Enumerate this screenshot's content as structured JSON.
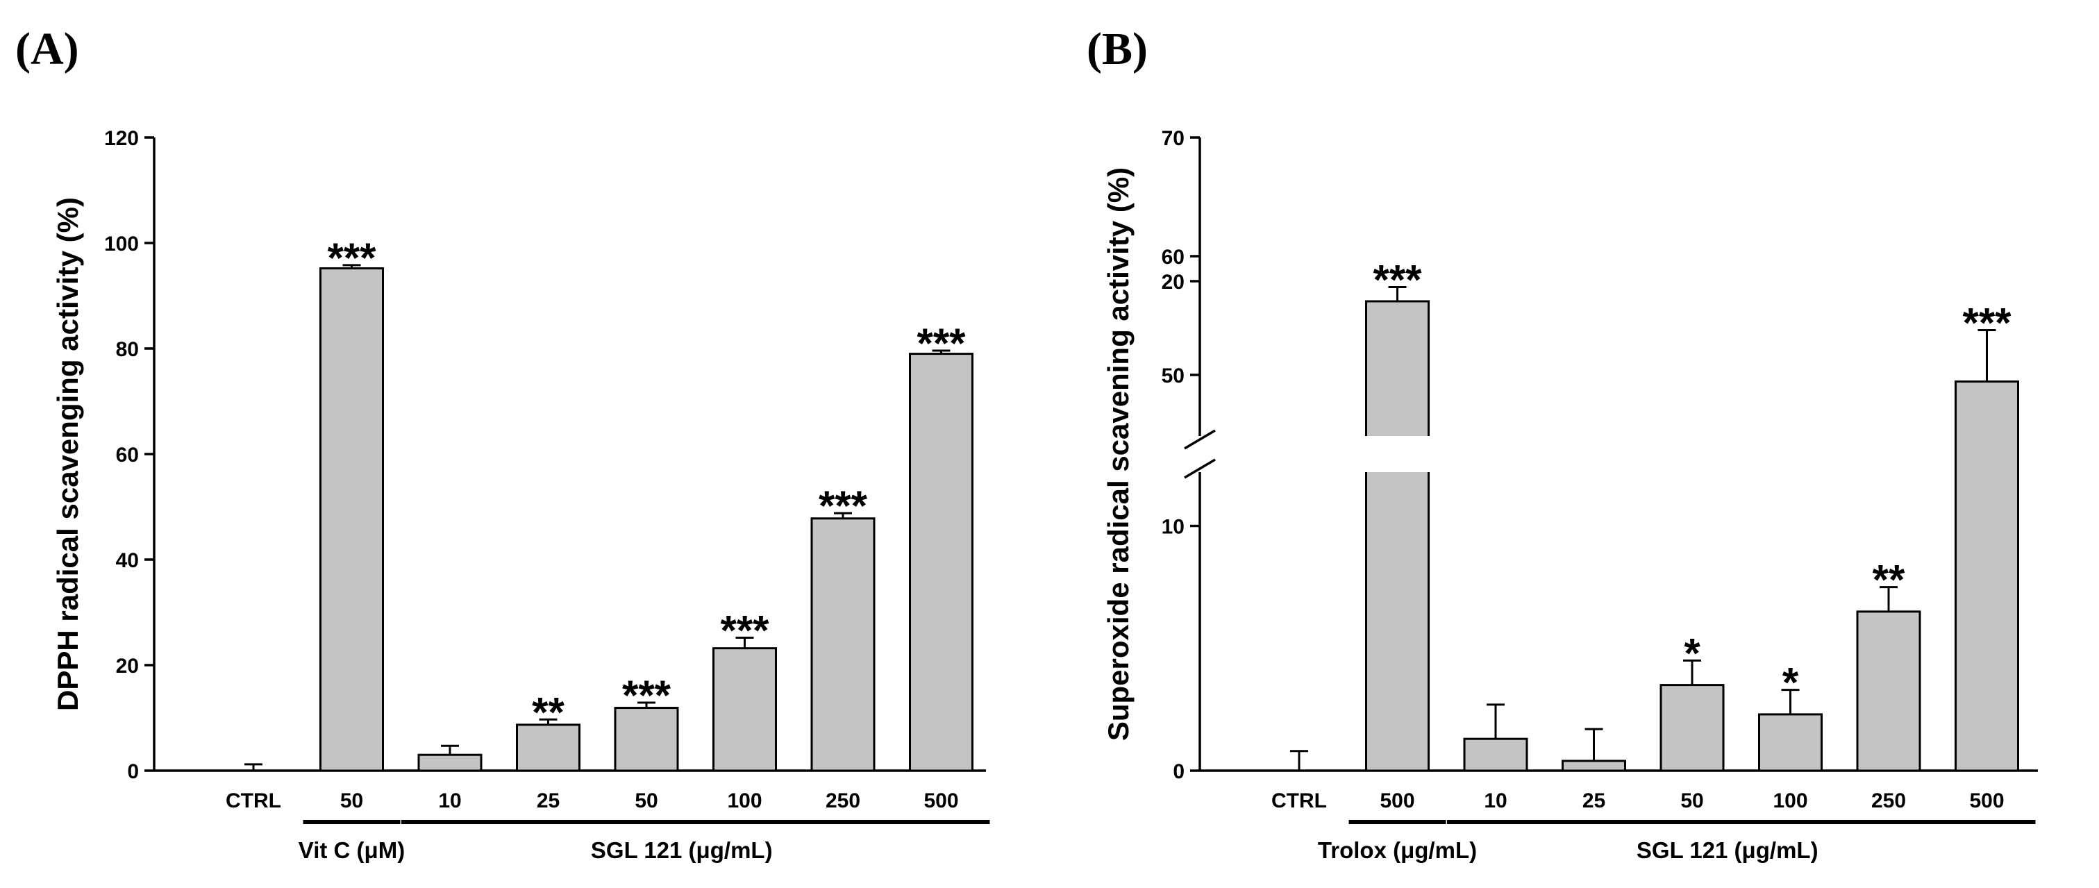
{
  "chart_data": [
    {
      "panel": "(A)",
      "type": "bar",
      "ylabel": "DPPH radical scavenging activity  (%)",
      "ylim": [
        0,
        120
      ],
      "yticks": [
        "0",
        "20",
        "40",
        "60",
        "80",
        "100",
        "120"
      ],
      "categories": [
        "CTRL",
        "50",
        "10",
        "25",
        "50",
        "100",
        "250",
        "500"
      ],
      "values": [
        0,
        95.2,
        3.0,
        8.7,
        11.9,
        23.2,
        47.8,
        79.0
      ],
      "errors": [
        1.2,
        0.6,
        1.7,
        1.0,
        1.0,
        2.0,
        1.0,
        0.6
      ],
      "significance": [
        "",
        "***",
        "",
        "**",
        "***",
        "***",
        "***",
        "***"
      ],
      "groups": [
        {
          "label": "Vit C (μM)",
          "from": 1,
          "to": 1
        },
        {
          "label": "SGL 121  (μg/mL)",
          "from": 2,
          "to": 7
        }
      ]
    },
    {
      "panel": "(B)",
      "type": "bar",
      "ylabel": "Superoxide radical scavening activity  (%)",
      "ylim": [
        0,
        70
      ],
      "axis_break": [
        20,
        45
      ],
      "yticks": [
        "0",
        "10",
        "20",
        "50",
        "60",
        "70"
      ],
      "categories": [
        "CTRL",
        "500",
        "10",
        "25",
        "50",
        "100",
        "250",
        "500"
      ],
      "values": [
        0,
        56.2,
        1.3,
        0.4,
        3.5,
        2.3,
        6.5,
        15.9
      ],
      "errors": [
        0.8,
        1.2,
        1.4,
        1.3,
        1.0,
        1.0,
        1.0,
        2.1
      ],
      "significance": [
        "",
        "***",
        "",
        "",
        "*",
        "*",
        "**",
        "***"
      ],
      "groups": [
        {
          "label": "Trolox (μg/mL)",
          "from": 1,
          "to": 1
        },
        {
          "label": "SGL 121  (μg/mL)",
          "from": 2,
          "to": 7
        }
      ]
    }
  ]
}
